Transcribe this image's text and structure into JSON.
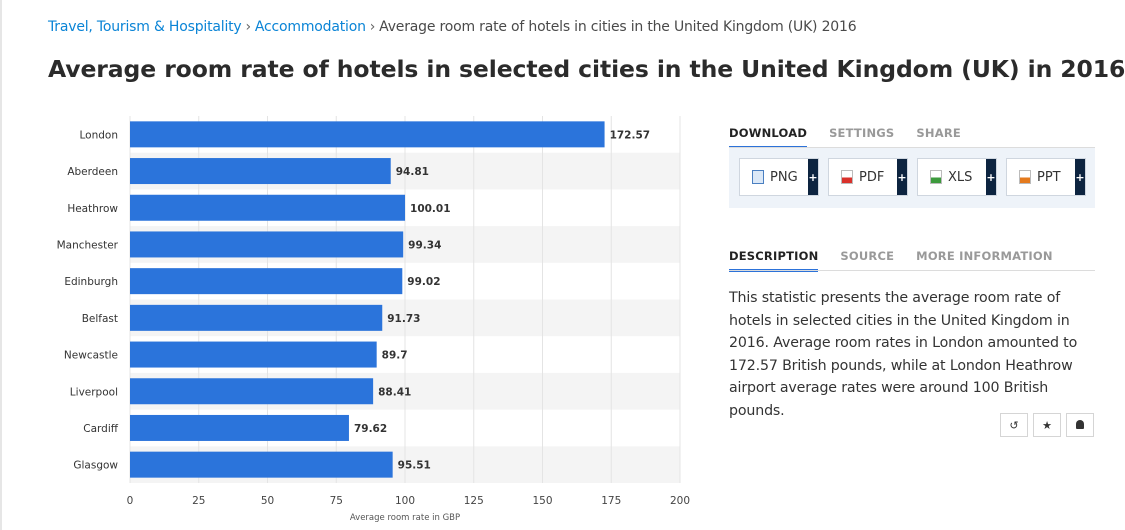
{
  "breadcrumb": {
    "items": [
      "Travel, Tourism & Hospitality",
      "Accommodation"
    ],
    "separator": "›",
    "current": "Average room rate of hotels in cities in the United Kingdom (UK) 2016"
  },
  "title": "Average room rate of hotels in selected cities in the United Kingdom (UK) in 2016",
  "chart_data": {
    "type": "bar",
    "orientation": "horizontal",
    "categories": [
      "London",
      "Aberdeen",
      "Heathrow",
      "Manchester",
      "Edinburgh",
      "Belfast",
      "Newcastle",
      "Liverpool",
      "Cardiff",
      "Glasgow"
    ],
    "values": [
      172.57,
      94.81,
      100.01,
      99.34,
      99.02,
      91.73,
      89.7,
      88.41,
      79.62,
      95.51
    ],
    "value_labels": [
      "172.57",
      "94.81",
      "100.01",
      "99.34",
      "99.02",
      "91.73",
      "89.7",
      "88.41",
      "79.62",
      "95.51"
    ],
    "xlabel": "Average room rate in GBP",
    "ylabel": "",
    "xlim": [
      0,
      200
    ],
    "xticks": [
      0,
      25,
      50,
      75,
      100,
      125,
      150,
      175,
      200
    ],
    "bar_color": "#2b74db",
    "band_color": "#f4f4f4",
    "grid": true
  },
  "download": {
    "tabs": [
      "DOWNLOAD",
      "SETTINGS",
      "SHARE"
    ],
    "buttons": [
      {
        "label": "PNG",
        "icon": "png-file-icon",
        "color": "#4a7fc1"
      },
      {
        "label": "PDF",
        "icon": "pdf-file-icon",
        "color": "#d9312b"
      },
      {
        "label": "XLS",
        "icon": "xls-file-icon",
        "color": "#3d9a3d"
      },
      {
        "label": "PPT",
        "icon": "ppt-file-icon",
        "color": "#e47a1d"
      }
    ],
    "plus": "+"
  },
  "info": {
    "tabs": [
      "DESCRIPTION",
      "SOURCE",
      "MORE INFORMATION"
    ],
    "description": "This statistic presents the average room rate of hotels in selected cities in the United Kingdom in 2016. Average room rates in London amounted to 172.57 British pounds, while at London Heathrow airport average rates were around 100 British pounds."
  },
  "actions": [
    {
      "icon": "history-icon",
      "glyph": "↺"
    },
    {
      "icon": "star-icon",
      "glyph": "★"
    },
    {
      "icon": "bell-icon",
      "glyph": "🔔"
    }
  ]
}
